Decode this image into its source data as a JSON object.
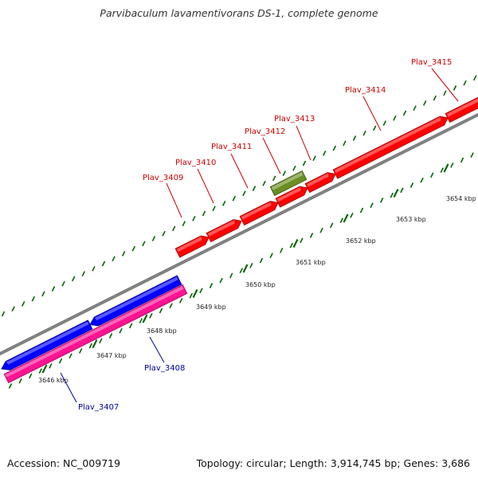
{
  "title": "Parvibaculum lavamentivorans DS-1, complete genome",
  "footer": {
    "accession": "Accession: NC_009719",
    "summary": "Topology: circular; Length: 3,914,745 bp; Genes: 3,686"
  },
  "colors": {
    "forward_gene": "#ff0000",
    "forward_gene_label": "#cc0000",
    "reverse_gene": "#0000ff",
    "reverse_gene_label": "#000099",
    "pseudo_gene": "#ff1493",
    "rna_gene": "#6b8e23",
    "backbone": "#808080",
    "ticks": "#006400"
  },
  "scale": {
    "labels": [
      "3646 kbp",
      "3647 kbp",
      "3648 kbp",
      "3649 kbp",
      "3650 kbp",
      "3651 kbp",
      "3652 kbp",
      "3653 kbp",
      "3654 kbp"
    ]
  },
  "genes": [
    {
      "label": "Plav_3407",
      "strand": "reverse",
      "type": "pseudo"
    },
    {
      "label": "Plav_3408",
      "strand": "reverse",
      "type": "cds"
    },
    {
      "label": "Plav_3409",
      "strand": "forward",
      "type": "cds"
    },
    {
      "label": "Plav_3410",
      "strand": "forward",
      "type": "cds"
    },
    {
      "label": "Plav_3411",
      "strand": "forward",
      "type": "cds"
    },
    {
      "label": "Plav_3412",
      "strand": "forward",
      "type": "rna"
    },
    {
      "label": "Plav_3413",
      "strand": "forward",
      "type": "cds"
    },
    {
      "label": "Plav_3414",
      "strand": "forward",
      "type": "cds"
    },
    {
      "label": "Plav_3415",
      "strand": "forward",
      "type": "cds"
    }
  ]
}
